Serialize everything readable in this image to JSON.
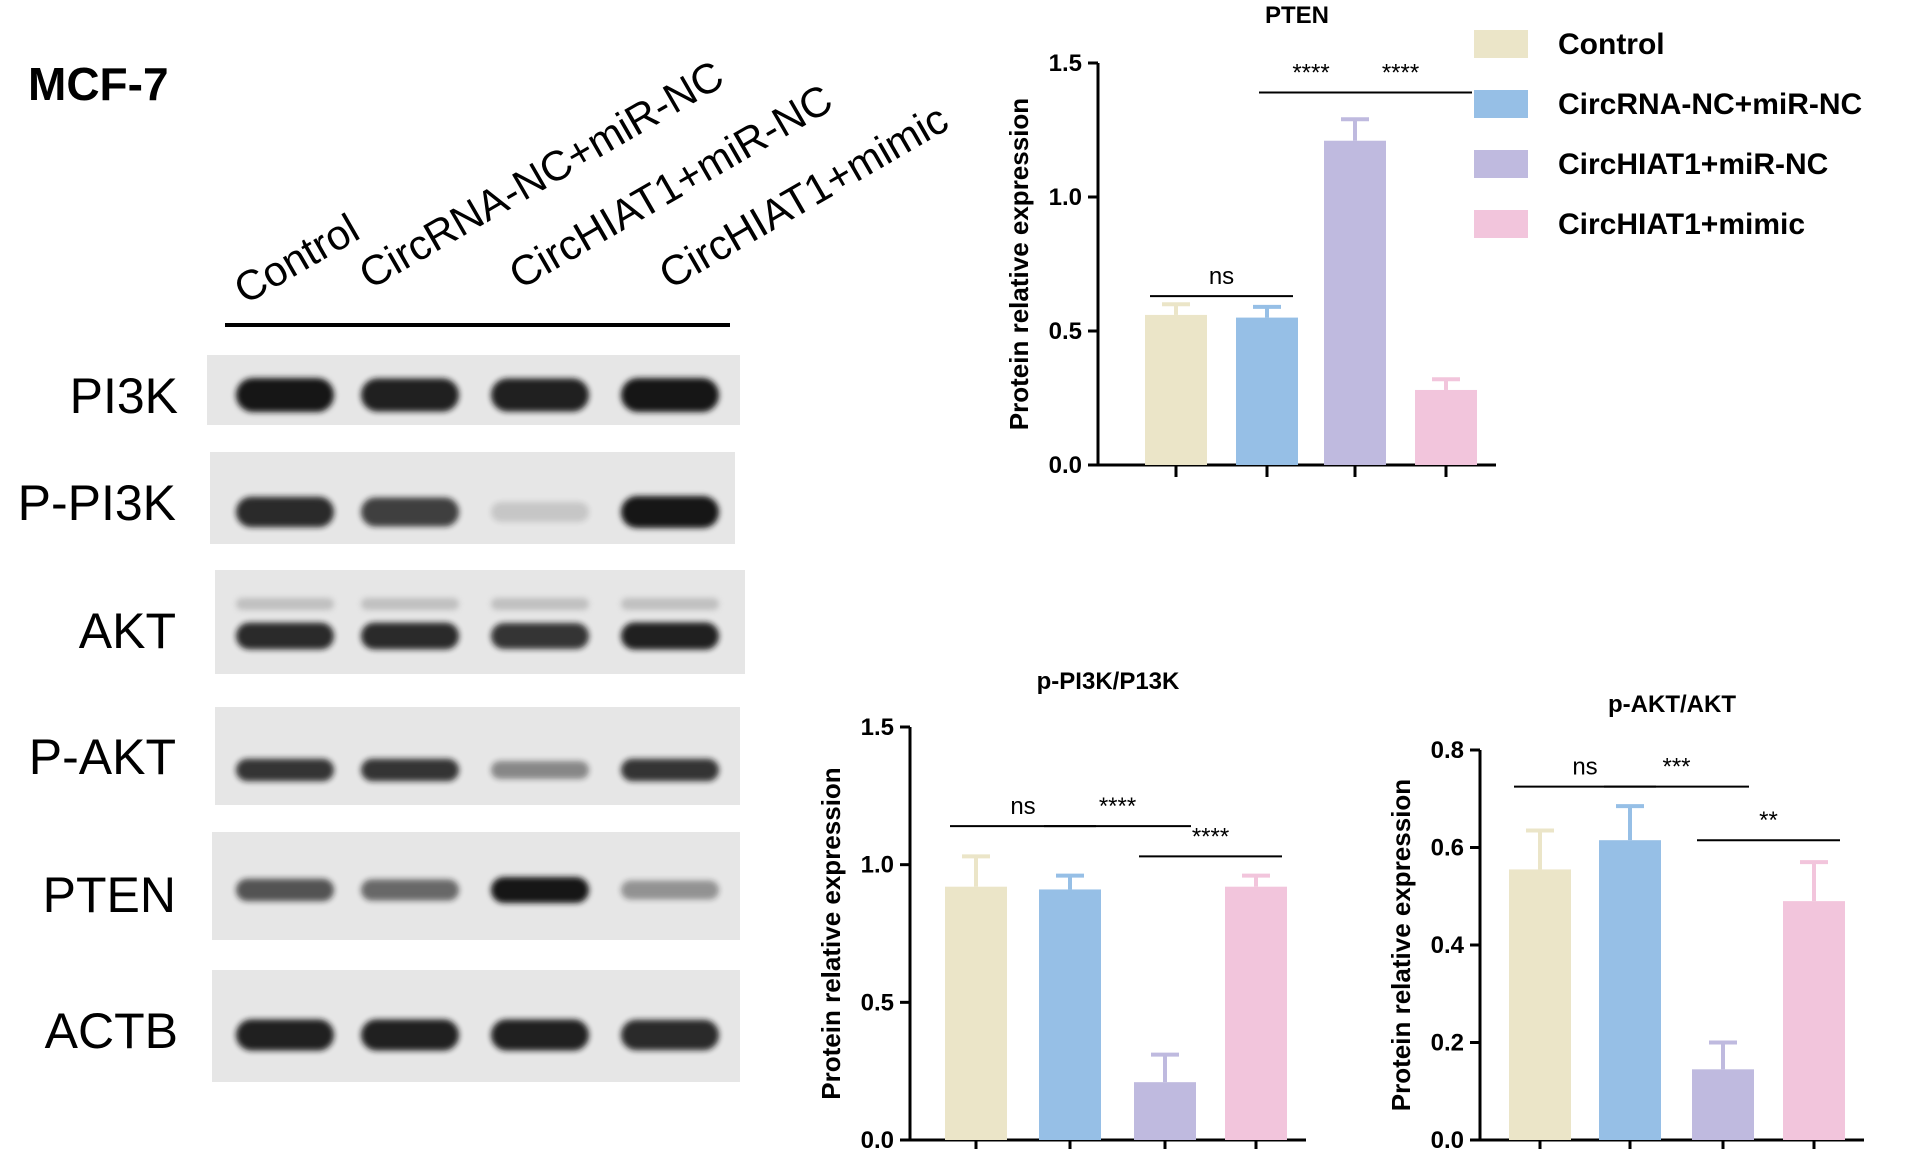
{
  "figure": {
    "panel_title": "MCF-7",
    "conditions": [
      "Control",
      "CircRNA-NC+miR-NC",
      "CircHIAT1+miR-NC",
      "CircHIAT1+mimic"
    ],
    "proteins": [
      "PI3K",
      "P-PI3K",
      "AKT",
      "P-AKT",
      "PTEN",
      "ACTB"
    ],
    "colors": {
      "Control": "#ebe5c8",
      "CircRNA-NC+miR-NC": "#96bfe6",
      "CircHIAT1+miR-NC": "#bfbadf",
      "CircHIAT1+mimic": "#f2c5dc",
      "blot_background": "#e6e6e6",
      "band": "#141414"
    }
  },
  "legend": {
    "position": "top-right",
    "entries": [
      "Control",
      "CircRNA-NC+miR-NC",
      "CircHIAT1+miR-NC",
      "CircHIAT1+mimic"
    ]
  },
  "blot": {
    "band_intensity": {
      "PI3K": [
        1.0,
        0.95,
        0.95,
        1.0
      ],
      "P-PI3K": [
        0.9,
        0.8,
        0.15,
        1.0
      ],
      "AKT": [
        0.9,
        0.9,
        0.85,
        0.95
      ],
      "P-AKT": [
        0.85,
        0.85,
        0.45,
        0.85
      ],
      "PTEN": [
        0.7,
        0.6,
        1.0,
        0.4
      ],
      "ACTB": [
        0.95,
        0.95,
        0.95,
        0.9
      ]
    }
  },
  "chart_data": [
    {
      "type": "bar",
      "title": "PTEN",
      "ylabel": "Protein relative expression",
      "xlabel": "",
      "categories": [
        "Control",
        "CircRNA-NC+miR-NC",
        "CircHIAT1+miR-NC",
        "CircHIAT1+mimic"
      ],
      "values": [
        0.56,
        0.55,
        1.21,
        0.28
      ],
      "errors": [
        0.04,
        0.04,
        0.08,
        0.04
      ],
      "ylim": [
        0,
        1.5
      ],
      "yticks": [
        "0.0",
        "0.5",
        "1.0",
        "1.5"
      ],
      "significance": [
        {
          "from": 0,
          "to": 1,
          "label": "ns",
          "y": 0.63
        },
        {
          "from": 1,
          "to": 2,
          "label": "****",
          "y": 1.39
        },
        {
          "from": 2,
          "to": 3,
          "label": "****",
          "y": 1.39
        }
      ]
    },
    {
      "type": "bar",
      "title": "p-PI3K/P13K",
      "ylabel": "Protein relative expression",
      "xlabel": "",
      "categories": [
        "Control",
        "CircRNA-NC+miR-NC",
        "CircHIAT1+miR-NC",
        "CircHIAT1+mimic"
      ],
      "values": [
        0.92,
        0.91,
        0.21,
        0.92
      ],
      "errors": [
        0.11,
        0.05,
        0.1,
        0.04
      ],
      "ylim": [
        0,
        1.5
      ],
      "yticks": [
        "0.0",
        "0.5",
        "1.0",
        "1.5"
      ],
      "significance": [
        {
          "from": 0,
          "to": 1,
          "label": "ns",
          "y": 1.14
        },
        {
          "from": 1,
          "to": 2,
          "label": "****",
          "y": 1.14
        },
        {
          "from": 2,
          "to": 3,
          "label": "****",
          "y": 1.03
        }
      ]
    },
    {
      "type": "bar",
      "title": "p-AKT/AKT",
      "ylabel": "Protein relative expression",
      "xlabel": "",
      "categories": [
        "Control",
        "CircRNA-NC+miR-NC",
        "CircHIAT1+miR-NC",
        "CircHIAT1+mimic"
      ],
      "values": [
        0.555,
        0.615,
        0.145,
        0.49
      ],
      "errors": [
        0.08,
        0.07,
        0.055,
        0.08
      ],
      "ylim": [
        0,
        0.8
      ],
      "yticks": [
        "0.0",
        "0.2",
        "0.4",
        "0.6",
        "0.8"
      ],
      "significance": [
        {
          "from": 0,
          "to": 1,
          "label": "ns",
          "y": 0.725
        },
        {
          "from": 1,
          "to": 2,
          "label": "***",
          "y": 0.725
        },
        {
          "from": 2,
          "to": 3,
          "label": "**",
          "y": 0.615
        }
      ]
    }
  ]
}
